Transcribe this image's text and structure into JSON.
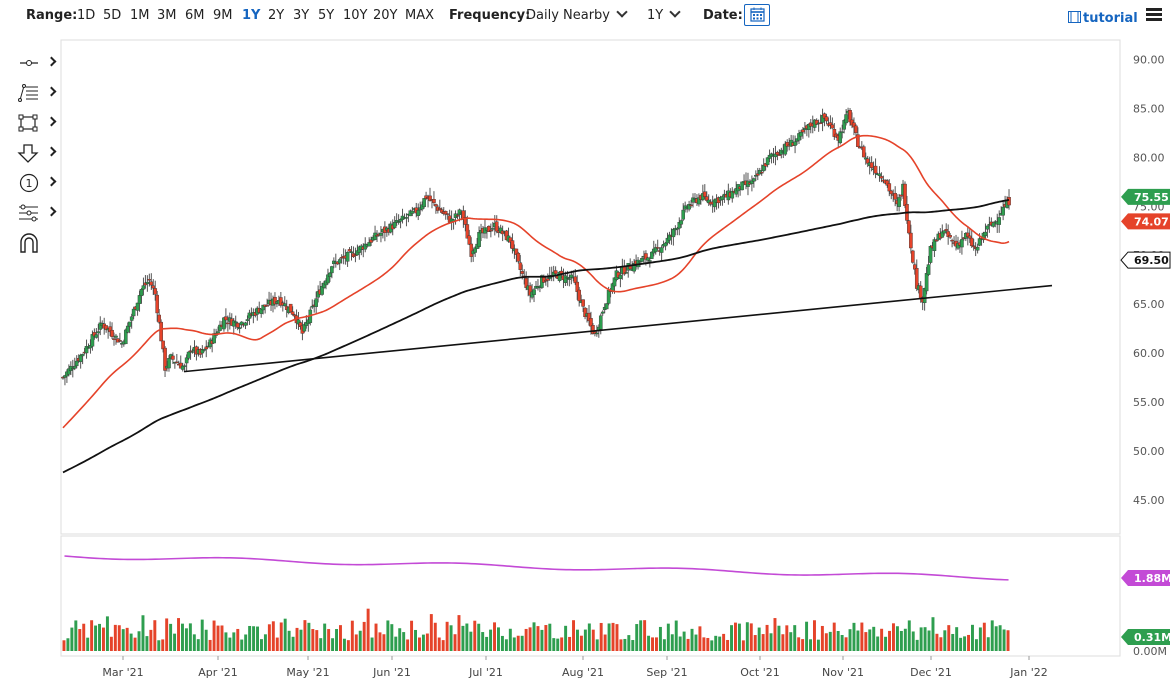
{
  "toolbar": {
    "range_label": "Range:",
    "ranges": [
      "1D",
      "5D",
      "1M",
      "3M",
      "6M",
      "9M",
      "1Y",
      "2Y",
      "3Y",
      "5Y",
      "10Y",
      "20Y",
      "MAX"
    ],
    "active_range": "1Y",
    "frequency_label": "Frequency:",
    "frequency_value": "Daily Nearby",
    "period_value": "1Y",
    "date_label": "Date:",
    "tutorial_label": "tutorial"
  },
  "left_tools": [
    {
      "icon": "line-tool-icon"
    },
    {
      "icon": "fib-tool-icon"
    },
    {
      "icon": "rectangle-tool-icon"
    },
    {
      "icon": "arrow-tool-icon"
    },
    {
      "icon": "annotation-number-icon",
      "text": "1"
    },
    {
      "icon": "measure-tool-icon"
    },
    {
      "icon": "magnet-icon"
    }
  ],
  "chart_data": {
    "type": "candlestick",
    "price_axis": {
      "ticks": [
        "90.00",
        "85.00",
        "80.00",
        "75.00",
        "70.00",
        "65.00",
        "60.00",
        "55.00",
        "50.00",
        "45.00"
      ],
      "ylim": [
        41.5,
        92
      ]
    },
    "volume_axis": {
      "ticks": [
        "1.88M",
        "0.31M",
        "0.00M"
      ]
    },
    "x_labels": [
      "Mar '21",
      "Apr '21",
      "May '21",
      "Jun '21",
      "Jul '21",
      "Aug '21",
      "Sep '21",
      "Oct '21",
      "Nov '21",
      "Dec '21",
      "Jan '22"
    ],
    "last_price": "75.55",
    "ma_short_value": "74.07",
    "ma_long_value": "69.50",
    "volume_ma_value": "1.88M",
    "last_volume": "0.31M",
    "colors": {
      "up": "#2e9e4f",
      "down": "#e5432a",
      "ma_short": "#e5432a",
      "ma_long": "#111111",
      "volume_ma": "#c34ad6",
      "last_price_tag": "#2e9e4f",
      "ma_short_tag": "#e5432a",
      "ma_long_tag": "#111111",
      "volume_ma_tag": "#c34ad6",
      "last_volume_tag": "#2e9e4f"
    },
    "close_path": [
      [
        0,
        57.5
      ],
      [
        10,
        60
      ],
      [
        20,
        63
      ],
      [
        30,
        61
      ],
      [
        40,
        66.5
      ],
      [
        44,
        67.5
      ],
      [
        47,
        66
      ],
      [
        52,
        58.5
      ],
      [
        55,
        59.5
      ],
      [
        62,
        58.5
      ],
      [
        65,
        60.5
      ],
      [
        70,
        59.8
      ],
      [
        75,
        61
      ],
      [
        82,
        63.5
      ],
      [
        90,
        63
      ],
      [
        100,
        64.5
      ],
      [
        110,
        65.5
      ],
      [
        118,
        64
      ],
      [
        122,
        62
      ],
      [
        130,
        66
      ],
      [
        137,
        69
      ],
      [
        148,
        70.2
      ],
      [
        160,
        72
      ],
      [
        172,
        73.5
      ],
      [
        180,
        74.5
      ],
      [
        185,
        76
      ],
      [
        190,
        75
      ],
      [
        198,
        73.5
      ],
      [
        203,
        74.5
      ],
      [
        208,
        70.3
      ],
      [
        212,
        72
      ],
      [
        220,
        73
      ],
      [
        228,
        71.5
      ],
      [
        232,
        69
      ],
      [
        238,
        66
      ],
      [
        244,
        67.5
      ],
      [
        252,
        68
      ],
      [
        260,
        67.5
      ],
      [
        265,
        64.5
      ],
      [
        271,
        61.8
      ],
      [
        276,
        65
      ],
      [
        282,
        68
      ],
      [
        290,
        69
      ],
      [
        300,
        70
      ],
      [
        310,
        72
      ],
      [
        318,
        75
      ],
      [
        325,
        76
      ],
      [
        330,
        75.5
      ],
      [
        338,
        76
      ],
      [
        345,
        77
      ],
      [
        352,
        77.5
      ],
      [
        360,
        80
      ],
      [
        368,
        81
      ],
      [
        375,
        82
      ],
      [
        382,
        83.5
      ],
      [
        388,
        84
      ],
      [
        395,
        82
      ],
      [
        400,
        84.5
      ],
      [
        405,
        81.5
      ],
      [
        410,
        79.5
      ],
      [
        418,
        78
      ],
      [
        425,
        75
      ],
      [
        428,
        77
      ],
      [
        432,
        71
      ],
      [
        435,
        67
      ],
      [
        438,
        65.5
      ],
      [
        442,
        70.5
      ],
      [
        448,
        72.5
      ],
      [
        455,
        71
      ],
      [
        460,
        72
      ],
      [
        465,
        70.5
      ],
      [
        470,
        72.5
      ],
      [
        475,
        73.5
      ],
      [
        478,
        74.5
      ],
      [
        482,
        75.55
      ]
    ],
    "volume_bars_count": 240,
    "volume_range": [
      0.0,
      2.6
    ]
  }
}
